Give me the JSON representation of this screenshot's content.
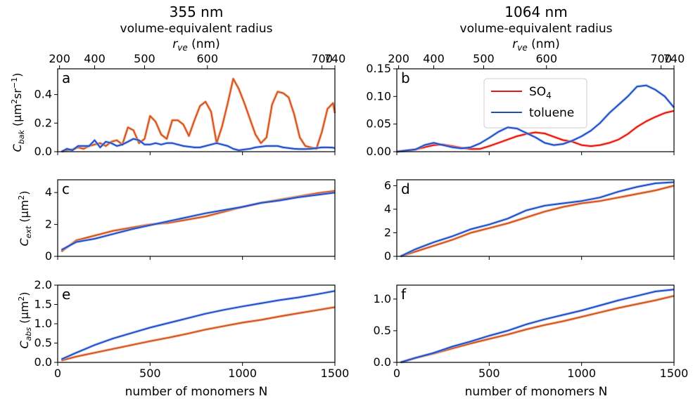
{
  "colors": {
    "so4": "#e8141a",
    "so4_band": "#f2a07a",
    "orange": "#d2541e",
    "toluene": "#2050c8",
    "toluene_band": "#9bb3e8",
    "axis": "#000000"
  },
  "column_titles": [
    "355 nm",
    "1064 nm"
  ],
  "top_axis": {
    "label": "volume-equivalent radius",
    "sublabel_main": "r",
    "sublabel_sub": "ve",
    "sublabel_unit": " (nm)",
    "radius_ticks": [
      200,
      400,
      500,
      600,
      700,
      740
    ],
    "radius_tick_N": [
      10,
      200,
      470,
      810,
      1430,
      1500
    ]
  },
  "bottom_xlabel": "number of monomers N",
  "xticks": [
    0,
    500,
    1000,
    1500
  ],
  "xlim": [
    0,
    1500
  ],
  "legend": {
    "so4": "SO",
    "so4_sub": "4",
    "toluene": "toluene"
  },
  "row_ylabels": [
    {
      "main": "C",
      "sub": "bak",
      "unit": " (μm",
      "sup": "2",
      "rest": "sr",
      "sup2": "−1",
      "close": ")"
    },
    {
      "main": "C",
      "sub": "ext",
      "unit": " (μm",
      "sup": "2",
      "close": ")"
    },
    {
      "main": "C",
      "sub": "abs",
      "unit": " (μm",
      "sup": "2",
      "close": ")"
    }
  ],
  "chart_data": [
    {
      "panel": "a",
      "type": "line",
      "wavelength": "355 nm",
      "ylim": [
        0,
        0.58
      ],
      "yticks": [
        0.0,
        0.2,
        0.4
      ],
      "x": [
        20,
        50,
        80,
        110,
        140,
        170,
        200,
        230,
        260,
        290,
        320,
        350,
        380,
        410,
        440,
        470,
        500,
        530,
        560,
        590,
        620,
        650,
        680,
        710,
        740,
        770,
        800,
        830,
        860,
        890,
        920,
        950,
        980,
        1010,
        1040,
        1070,
        1100,
        1130,
        1160,
        1190,
        1220,
        1250,
        1280,
        1310,
        1340,
        1370,
        1400,
        1430,
        1460,
        1490,
        1500
      ],
      "series": [
        {
          "name": "SO4",
          "color": "orange",
          "values": [
            0.0,
            0.01,
            0.015,
            0.03,
            0.02,
            0.04,
            0.05,
            0.06,
            0.04,
            0.07,
            0.08,
            0.05,
            0.17,
            0.15,
            0.06,
            0.09,
            0.25,
            0.21,
            0.12,
            0.09,
            0.22,
            0.22,
            0.19,
            0.11,
            0.22,
            0.32,
            0.35,
            0.28,
            0.06,
            0.18,
            0.34,
            0.51,
            0.44,
            0.34,
            0.23,
            0.12,
            0.06,
            0.1,
            0.33,
            0.42,
            0.41,
            0.38,
            0.26,
            0.1,
            0.04,
            0.03,
            0.02,
            0.14,
            0.3,
            0.34,
            0.27
          ]
        },
        {
          "name": "toluene",
          "color": "toluene",
          "values": [
            0.0,
            0.02,
            0.01,
            0.04,
            0.04,
            0.04,
            0.08,
            0.03,
            0.07,
            0.06,
            0.04,
            0.05,
            0.07,
            0.09,
            0.08,
            0.05,
            0.05,
            0.06,
            0.05,
            0.06,
            0.06,
            0.05,
            0.04,
            0.035,
            0.03,
            0.03,
            0.04,
            0.05,
            0.06,
            0.05,
            0.04,
            0.02,
            0.01,
            0.015,
            0.02,
            0.03,
            0.035,
            0.04,
            0.04,
            0.04,
            0.03,
            0.025,
            0.02,
            0.018,
            0.018,
            0.02,
            0.025,
            0.03,
            0.03,
            0.028,
            0.025
          ]
        }
      ]
    },
    {
      "panel": "b",
      "type": "line",
      "wavelength": "1064 nm",
      "ylim": [
        0,
        0.15
      ],
      "yticks": [
        0.0,
        0.05,
        0.1,
        0.15
      ],
      "x": [
        0,
        50,
        100,
        150,
        200,
        250,
        300,
        350,
        400,
        450,
        500,
        550,
        600,
        650,
        700,
        750,
        800,
        850,
        900,
        950,
        1000,
        1050,
        1100,
        1150,
        1200,
        1250,
        1300,
        1350,
        1400,
        1450,
        1500
      ],
      "series": [
        {
          "name": "SO4",
          "color": "so4",
          "values": [
            0.0,
            0.002,
            0.004,
            0.008,
            0.012,
            0.013,
            0.01,
            0.007,
            0.005,
            0.005,
            0.01,
            0.016,
            0.022,
            0.028,
            0.032,
            0.035,
            0.033,
            0.027,
            0.021,
            0.018,
            0.012,
            0.01,
            0.012,
            0.016,
            0.022,
            0.032,
            0.045,
            0.055,
            0.063,
            0.07,
            0.074
          ]
        },
        {
          "name": "toluene",
          "color": "toluene",
          "values": [
            0.0,
            0.002,
            0.004,
            0.012,
            0.016,
            0.012,
            0.008,
            0.006,
            0.008,
            0.015,
            0.025,
            0.036,
            0.044,
            0.042,
            0.034,
            0.026,
            0.016,
            0.012,
            0.014,
            0.02,
            0.028,
            0.038,
            0.052,
            0.07,
            0.085,
            0.1,
            0.118,
            0.12,
            0.112,
            0.1,
            0.08
          ]
        }
      ]
    },
    {
      "panel": "c",
      "type": "line",
      "wavelength": "355 nm",
      "ylim": [
        0,
        4.8
      ],
      "yticks": [
        0,
        2,
        4
      ],
      "x": [
        20,
        100,
        200,
        300,
        400,
        500,
        600,
        700,
        800,
        900,
        1000,
        1100,
        1200,
        1300,
        1400,
        1500
      ],
      "series": [
        {
          "name": "SO4",
          "color": "orange",
          "values": [
            0.3,
            1.0,
            1.3,
            1.6,
            1.8,
            2.0,
            2.1,
            2.3,
            2.5,
            2.8,
            3.1,
            3.35,
            3.55,
            3.75,
            3.95,
            4.1
          ]
        },
        {
          "name": "toluene",
          "color": "toluene",
          "values": [
            0.4,
            0.9,
            1.1,
            1.4,
            1.7,
            1.95,
            2.2,
            2.45,
            2.7,
            2.9,
            3.1,
            3.35,
            3.5,
            3.7,
            3.85,
            4.0
          ]
        }
      ]
    },
    {
      "panel": "d",
      "type": "line",
      "wavelength": "1064 nm",
      "ylim": [
        0,
        6.5
      ],
      "yticks": [
        0,
        2,
        4,
        6
      ],
      "x": [
        20,
        100,
        200,
        300,
        400,
        500,
        600,
        700,
        800,
        900,
        1000,
        1100,
        1200,
        1300,
        1400,
        1500
      ],
      "series": [
        {
          "name": "SO4",
          "color": "orange",
          "values": [
            0.0,
            0.4,
            0.9,
            1.4,
            2.0,
            2.4,
            2.8,
            3.3,
            3.8,
            4.2,
            4.5,
            4.7,
            5.0,
            5.3,
            5.6,
            6.0
          ]
        },
        {
          "name": "toluene",
          "color": "toluene",
          "values": [
            0.0,
            0.6,
            1.2,
            1.7,
            2.3,
            2.7,
            3.2,
            3.9,
            4.3,
            4.5,
            4.7,
            5.0,
            5.5,
            5.9,
            6.2,
            6.3
          ]
        }
      ]
    },
    {
      "panel": "e",
      "type": "line",
      "wavelength": "355 nm",
      "ylim": [
        0,
        2.0
      ],
      "yticks": [
        0.0,
        0.5,
        1.0,
        1.5,
        2.0
      ],
      "x": [
        20,
        100,
        200,
        300,
        400,
        500,
        600,
        700,
        800,
        900,
        1000,
        1100,
        1200,
        1300,
        1400,
        1500
      ],
      "series": [
        {
          "name": "SO4",
          "color": "orange",
          "values": [
            0.05,
            0.15,
            0.25,
            0.35,
            0.45,
            0.55,
            0.64,
            0.74,
            0.85,
            0.94,
            1.03,
            1.1,
            1.19,
            1.27,
            1.35,
            1.43
          ]
        },
        {
          "name": "toluene",
          "color": "toluene",
          "values": [
            0.08,
            0.25,
            0.45,
            0.62,
            0.76,
            0.9,
            1.02,
            1.14,
            1.26,
            1.36,
            1.45,
            1.53,
            1.61,
            1.68,
            1.76,
            1.85
          ]
        }
      ]
    },
    {
      "panel": "f",
      "type": "line",
      "wavelength": "1064 nm",
      "ylim": [
        0,
        1.22
      ],
      "yticks": [
        0.0,
        0.5,
        1.0
      ],
      "x": [
        20,
        100,
        200,
        300,
        400,
        500,
        600,
        700,
        800,
        900,
        1000,
        1100,
        1200,
        1300,
        1400,
        1500
      ],
      "series": [
        {
          "name": "SO4",
          "color": "orange",
          "values": [
            0.0,
            0.07,
            0.14,
            0.22,
            0.3,
            0.37,
            0.44,
            0.52,
            0.59,
            0.65,
            0.72,
            0.79,
            0.86,
            0.92,
            0.98,
            1.05
          ]
        },
        {
          "name": "toluene",
          "color": "toluene",
          "values": [
            0.0,
            0.07,
            0.15,
            0.25,
            0.33,
            0.42,
            0.5,
            0.6,
            0.68,
            0.75,
            0.82,
            0.9,
            0.98,
            1.05,
            1.12,
            1.15
          ]
        }
      ]
    }
  ]
}
